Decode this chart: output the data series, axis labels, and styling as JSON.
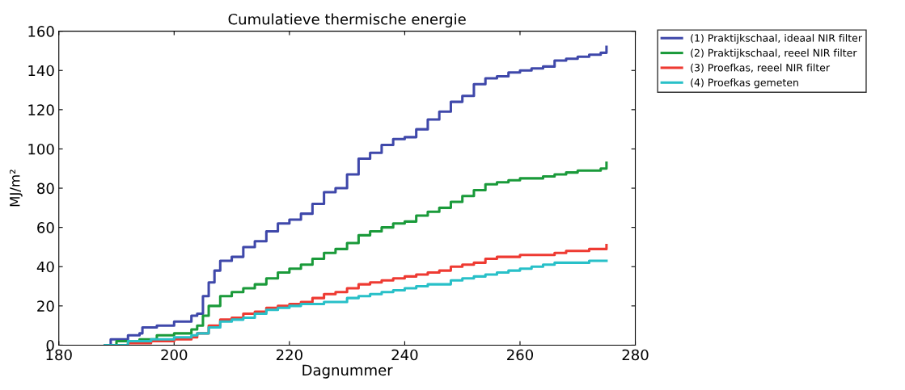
{
  "chart_data": {
    "type": "step",
    "title": "Cumulatieve thermische energie",
    "xlabel": "Dagnummer",
    "ylabel": "MJ/m²",
    "xlim": [
      180,
      280
    ],
    "xticks": [
      180,
      200,
      220,
      240,
      260,
      280
    ],
    "ylim": [
      0,
      160
    ],
    "yticks": [
      0,
      20,
      40,
      60,
      80,
      100,
      120,
      140,
      160
    ],
    "grid": false,
    "legend": "top right",
    "line_style": "solid",
    "marker": "none",
    "series": [
      {
        "name": "(1) Praktijkschaal, ideaal NIR filter",
        "color": "#3f48aa",
        "x": [
          188,
          189,
          192,
          194,
          194.5,
          197,
          200,
          203,
          204,
          205,
          206,
          207,
          208,
          210,
          212,
          214,
          216,
          218,
          220,
          222,
          224,
          226,
          228,
          230,
          232,
          234,
          236,
          238,
          240,
          242,
          244,
          246,
          248,
          250,
          252,
          254,
          256,
          258,
          260,
          262,
          264,
          266,
          268,
          270,
          272,
          274,
          275
        ],
        "values": [
          0,
          3,
          5,
          6,
          9,
          10,
          12,
          15,
          16,
          25,
          32,
          38,
          43,
          45,
          50,
          53,
          58,
          62,
          64,
          67,
          72,
          78,
          80,
          87,
          95,
          98,
          102,
          105,
          106,
          110,
          115,
          119,
          124,
          127,
          133,
          136,
          137,
          139,
          140,
          141,
          142,
          145,
          146,
          147,
          148,
          149,
          152
        ]
      },
      {
        "name": "(2) Praktijkschaal, reeel NIR filter",
        "color": "#1a9a3a",
        "x": [
          188,
          190,
          194,
          197,
          200,
          203,
          204,
          205,
          206,
          208,
          210,
          212,
          214,
          216,
          218,
          220,
          222,
          224,
          226,
          228,
          230,
          232,
          234,
          236,
          238,
          240,
          242,
          244,
          246,
          248,
          250,
          252,
          254,
          256,
          258,
          260,
          262,
          264,
          266,
          268,
          270,
          272,
          274,
          275
        ],
        "values": [
          0,
          2,
          3,
          5,
          6,
          8,
          10,
          15,
          20,
          25,
          27,
          29,
          31,
          34,
          37,
          39,
          41,
          44,
          47,
          49,
          52,
          56,
          58,
          60,
          62,
          63,
          66,
          68,
          70,
          73,
          76,
          79,
          82,
          83,
          84,
          85,
          85,
          86,
          87,
          88,
          89,
          89,
          90,
          93
        ]
      },
      {
        "name": "(3) Proefkas, reeel NIR filter",
        "color": "#ee3a32",
        "x": [
          188,
          192,
          196,
          200,
          203,
          204,
          206,
          208,
          210,
          212,
          214,
          216,
          218,
          220,
          222,
          224,
          226,
          228,
          230,
          232,
          234,
          236,
          238,
          240,
          242,
          244,
          246,
          248,
          250,
          252,
          254,
          256,
          258,
          260,
          262,
          264,
          266,
          268,
          270,
          272,
          274,
          275
        ],
        "values": [
          0,
          1,
          2,
          3,
          4,
          6,
          10,
          13,
          14,
          16,
          17,
          19,
          20,
          21,
          22,
          24,
          26,
          27,
          29,
          31,
          32,
          33,
          34,
          35,
          36,
          37,
          38,
          40,
          41,
          42,
          44,
          45,
          45,
          46,
          46,
          46,
          47,
          48,
          48,
          49,
          49,
          51
        ]
      },
      {
        "name": "(4) Proefkas gemeten",
        "color": "#28c0c8",
        "x": [
          188,
          192,
          196,
          200,
          203,
          204,
          206,
          208,
          210,
          212,
          214,
          216,
          218,
          220,
          222,
          224,
          226,
          228,
          230,
          232,
          234,
          236,
          238,
          240,
          242,
          244,
          246,
          248,
          250,
          252,
          254,
          256,
          258,
          260,
          262,
          264,
          266,
          268,
          270,
          272,
          274,
          275
        ],
        "values": [
          0,
          2,
          3,
          4,
          5,
          6,
          9,
          12,
          13,
          14,
          16,
          18,
          19,
          20,
          21,
          21,
          22,
          22,
          24,
          25,
          26,
          27,
          28,
          29,
          30,
          31,
          31,
          33,
          34,
          35,
          36,
          37,
          38,
          39,
          40,
          41,
          42,
          42,
          42,
          43,
          43,
          43
        ]
      }
    ]
  }
}
